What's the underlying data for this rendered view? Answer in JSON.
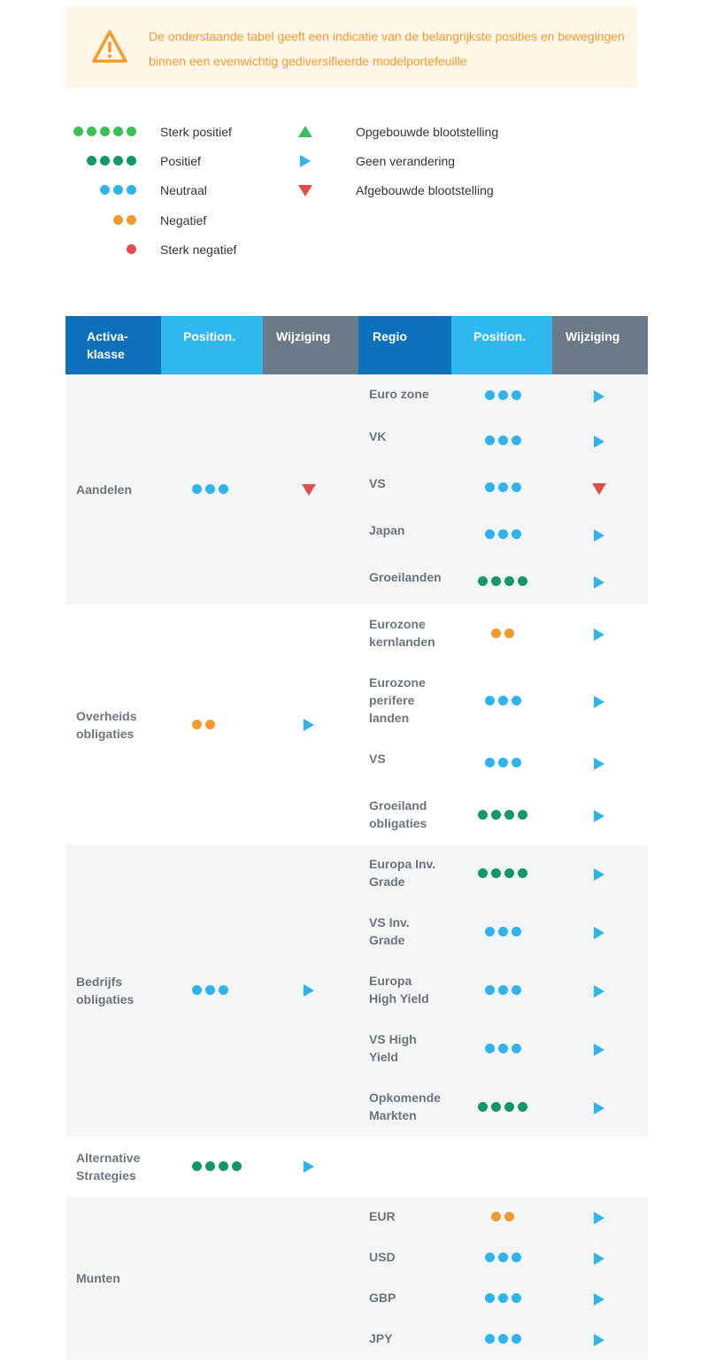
{
  "notice": {
    "icon": "warning-icon",
    "text": "De onderstaande tabel geeft een indicatie van de belangrijkste posities en bewegingen binnen een evenwichtig gediversifieerde modelportefeuille"
  },
  "legend": {
    "positions": [
      {
        "key": "sp",
        "label": "Sterk positief",
        "dots": 5,
        "color": "#3bbf5a"
      },
      {
        "key": "p",
        "label": "Positief",
        "dots": 4,
        "color": "#13966a"
      },
      {
        "key": "n",
        "label": "Neutraal",
        "dots": 3,
        "color": "#2eb4ec"
      },
      {
        "key": "neg",
        "label": "Negatief",
        "dots": 2,
        "color": "#f29a2e"
      },
      {
        "key": "sn",
        "label": "Sterk negatief",
        "dots": 1,
        "color": "#e44b4b"
      }
    ],
    "changes": [
      {
        "key": "up",
        "label": "Opgebouwde blootstelling",
        "icon": "triangle-up-icon",
        "color": "#3bbf5a"
      },
      {
        "key": "right",
        "label": "Geen verandering",
        "icon": "triangle-right-icon",
        "color": "#2eb4ec"
      },
      {
        "key": "down",
        "label": "Afgebouwde blootstelling",
        "icon": "triangle-down-icon",
        "color": "#e44b4b"
      }
    ]
  },
  "table": {
    "headers": [
      "Activa-\nklasse",
      "Position.",
      "Wijziging",
      "Regio",
      "Position.",
      "Wijziging"
    ],
    "header_colors": [
      "#0c71b9",
      "#2eb8ee",
      "#6c7a88",
      "#0c71b9",
      "#2eb8ee",
      "#6c7a88"
    ],
    "groups": [
      {
        "name": "Aandelen",
        "position": "n",
        "change": "down",
        "regions": [
          {
            "name": "Euro zone",
            "position": "n",
            "change": "right"
          },
          {
            "name": "VK",
            "position": "n",
            "change": "right"
          },
          {
            "name": "VS",
            "position": "n",
            "change": "down"
          },
          {
            "name": "Japan",
            "position": "n",
            "change": "right"
          },
          {
            "name": "Groeilanden",
            "position": "p",
            "change": "right"
          }
        ]
      },
      {
        "name": "Overheids\nobligaties",
        "position": "neg",
        "change": "right",
        "regions": [
          {
            "name": "Eurozone\nkernlanden",
            "position": "neg",
            "change": "right"
          },
          {
            "name": "Eurozone\nperifere\nlanden",
            "position": "n",
            "change": "right"
          },
          {
            "name": "VS",
            "position": "n",
            "change": "right"
          },
          {
            "name": "Groeiland\nobligaties",
            "position": "p",
            "change": "right"
          }
        ]
      },
      {
        "name": "Bedrijfs\nobligaties",
        "position": "n",
        "change": "right",
        "regions": [
          {
            "name": "Europa Inv.\nGrade",
            "position": "p",
            "change": "right"
          },
          {
            "name": "VS Inv.\nGrade",
            "position": "n",
            "change": "right"
          },
          {
            "name": "Europa\nHigh Yield",
            "position": "n",
            "change": "right"
          },
          {
            "name": "VS High\nYield",
            "position": "n",
            "change": "right"
          },
          {
            "name": "Opkomende\nMarkten",
            "position": "p",
            "change": "right"
          }
        ]
      },
      {
        "name": "Alternative\nStrategies",
        "position": "p",
        "change": "right",
        "regions": []
      },
      {
        "name": "Munten",
        "position": "",
        "change": "",
        "regions": [
          {
            "name": "EUR",
            "position": "neg",
            "change": "right"
          },
          {
            "name": "USD",
            "position": "n",
            "change": "right"
          },
          {
            "name": "GBP",
            "position": "n",
            "change": "right"
          },
          {
            "name": "JPY",
            "position": "n",
            "change": "right"
          }
        ]
      }
    ]
  }
}
